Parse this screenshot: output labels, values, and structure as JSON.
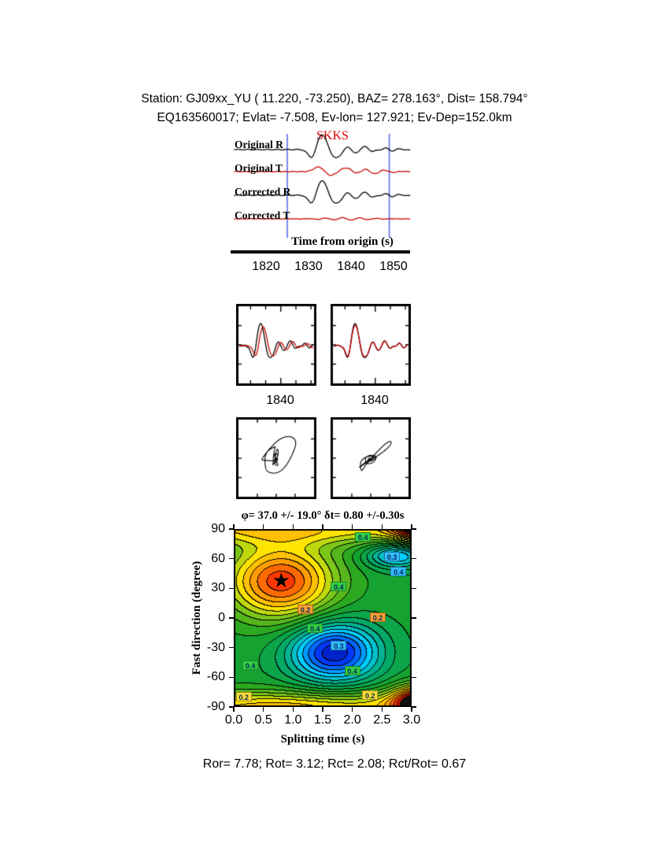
{
  "page": {
    "background": "#ffffff"
  },
  "header": {
    "line1": "Station: GJ09xx_YU (  11.220,  -73.250), BAZ=  278.163°, Dist=  158.794°",
    "line2": "EQ163560017; Evlat=  -7.508, Ev-lon= 127.921; Ev-Dep=152.0km"
  },
  "footer": {
    "stats": "Ror= 7.78; Rot= 3.12; Rct= 2.08; Rct/Rot= 0.67"
  },
  "colors": {
    "trace_r": "#000000",
    "trace_t": "#cc0000",
    "window_marker": "#5b6ee8",
    "phase_label": "#dd0000"
  },
  "chart_data": [
    {
      "type": "line",
      "name": "seismogram-traces",
      "phase_label": "SKKS",
      "traces": [
        {
          "label": "Original R",
          "color": "#000000"
        },
        {
          "label": "Original T",
          "color": "#cc0000"
        },
        {
          "label": "Corrected R",
          "color": "#000000"
        },
        {
          "label": "Corrected T",
          "color": "#cc0000"
        }
      ],
      "xlabel": "Time from origin (s)",
      "xlim": [
        1812,
        1854
      ],
      "xticks": [
        "1820",
        "1830",
        "1840",
        "1850"
      ],
      "window_s": [
        1825,
        1849
      ]
    },
    {
      "type": "line",
      "name": "window-waveforms",
      "xlim": [
        1826,
        1851
      ],
      "panels": [
        {
          "name": "original-window",
          "xtick_label": "1840"
        },
        {
          "name": "corrected-window",
          "xtick_label": "1840"
        }
      ]
    },
    {
      "type": "scatter",
      "name": "particle-motion",
      "panels": [
        {
          "name": "original-particle-motion"
        },
        {
          "name": "corrected-particle-motion"
        }
      ]
    },
    {
      "type": "heatmap",
      "name": "splitting-parameter-search",
      "title": "φ= 37.0 +/- 19.0° δt= 0.80 +/-0.30s",
      "xlabel": "Splitting time (s)",
      "ylabel": "Fast direction (degree)",
      "xlim": [
        0.0,
        3.0
      ],
      "ylim": [
        -90,
        90
      ],
      "xticks": [
        "0.0",
        "0.5",
        "1.0",
        "1.5",
        "2.0",
        "2.5",
        "3.0"
      ],
      "yticks": [
        "90",
        "60",
        "30",
        "0",
        "-30",
        "-60",
        "-90"
      ],
      "best": {
        "phi_deg": 37.0,
        "phi_err_deg": 19.0,
        "dt_s": 0.8,
        "dt_err_s": 0.3
      },
      "star": {
        "dt_s": 0.8,
        "phi_deg": 37
      },
      "contour_labels": [
        {
          "dt": 2.18,
          "phi": 82,
          "text": "0.4",
          "bg": "#33cc44"
        },
        {
          "dt": 2.67,
          "phi": 62,
          "text": "0.3",
          "bg": "#33bbff"
        },
        {
          "dt": 2.78,
          "phi": 47,
          "text": "0.4",
          "bg": "#33bbff"
        },
        {
          "dt": 1.77,
          "phi": 32,
          "text": "0.4",
          "bg": "#33cc44"
        },
        {
          "dt": 1.21,
          "phi": 9,
          "text": "0.2",
          "bg": "#ffa033"
        },
        {
          "dt": 2.43,
          "phi": 1,
          "text": "0.2",
          "bg": "#ffa033"
        },
        {
          "dt": 1.37,
          "phi": -10,
          "text": "0.4",
          "bg": "#33cc44"
        },
        {
          "dt": 1.77,
          "phi": -28,
          "text": "0.3",
          "bg": "#33bbff"
        },
        {
          "dt": 2.0,
          "phi": -53,
          "text": "0.4",
          "bg": "#33cc44"
        },
        {
          "dt": 0.28,
          "phi": -48,
          "text": "0.4",
          "bg": "#33cc44"
        },
        {
          "dt": 0.17,
          "phi": -80,
          "text": "0.2",
          "bg": "#ffdd33"
        },
        {
          "dt": 2.3,
          "phi": -78,
          "text": "0.2",
          "bg": "#ffdd33"
        }
      ]
    }
  ]
}
